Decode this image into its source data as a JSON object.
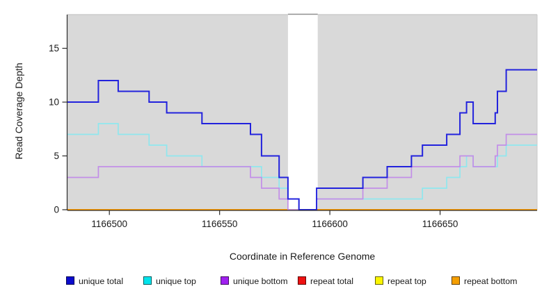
{
  "figure": {
    "panel_fill": "#d9d9d9",
    "panel_border_color": "#c6c6c6",
    "axis_color": "#2a2a2a",
    "text_color": "#1a1a1a"
  },
  "chart_data": {
    "type": "line",
    "step": true,
    "title": "",
    "xlabel": "Coordinate in Reference Genome",
    "ylabel": "Read Coverage Depth",
    "xlim": [
      1166481,
      1166694
    ],
    "ylim": [
      0,
      18.1
    ],
    "x_ticks": [
      1166500,
      1166550,
      1166600,
      1166650
    ],
    "y_ticks": [
      0,
      5,
      10,
      15
    ],
    "grid": false,
    "legend_position": "bottom",
    "gap_band": {
      "start": 1166581,
      "end": 1166594.5,
      "fill": "#ffffff",
      "top_line_color": "#8f8f8f"
    },
    "series": [
      {
        "name": "repeat total",
        "color_line": "#dd0000",
        "color_legend": "#ee1111",
        "width": 1.7,
        "segments": [
          [
            1166481,
            0
          ]
        ]
      },
      {
        "name": "repeat top",
        "color_line": "#f0f000",
        "color_legend": "#fbf500",
        "width": 1.7,
        "segments": [
          [
            1166481,
            0
          ]
        ]
      },
      {
        "name": "repeat bottom",
        "color_line": "#ff9c00",
        "color_legend": "#f59f00",
        "width": 2,
        "segments": [
          [
            1166481,
            0
          ]
        ]
      },
      {
        "name": "unique top",
        "color_line": "#8fe7ee",
        "color_legend": "#00e4ec",
        "width": 1.7,
        "segments": [
          [
            1166481,
            7
          ],
          [
            1166495,
            8
          ],
          [
            1166504,
            7
          ],
          [
            1166518,
            6
          ],
          [
            1166526,
            5
          ],
          [
            1166542,
            4
          ],
          [
            1166569,
            3
          ],
          [
            1166577,
            2
          ],
          [
            1166581,
            1
          ],
          [
            1166586,
            0
          ],
          [
            1166594,
            1
          ],
          [
            1166642,
            2
          ],
          [
            1166653,
            3
          ],
          [
            1166659,
            4
          ],
          [
            1166662,
            5
          ],
          [
            1166665,
            4
          ],
          [
            1166676,
            5
          ],
          [
            1166680,
            6
          ]
        ]
      },
      {
        "name": "unique bottom",
        "color_line": "#c28ee8",
        "color_legend": "#a020f0",
        "width": 1.7,
        "segments": [
          [
            1166481,
            3
          ],
          [
            1166495,
            4
          ],
          [
            1166564,
            3
          ],
          [
            1166569,
            2
          ],
          [
            1166577,
            1
          ],
          [
            1166581,
            0
          ],
          [
            1166594,
            1
          ],
          [
            1166615,
            2
          ],
          [
            1166626,
            3
          ],
          [
            1166637,
            4
          ],
          [
            1166659,
            5
          ],
          [
            1166665,
            4
          ],
          [
            1166675,
            5
          ],
          [
            1166676,
            6
          ],
          [
            1166680,
            7
          ]
        ]
      },
      {
        "name": "unique total",
        "color_line": "#2222dd",
        "color_legend": "#0b0bcd",
        "width": 2,
        "segments": [
          [
            1166481,
            10
          ],
          [
            1166495,
            12
          ],
          [
            1166504,
            11
          ],
          [
            1166518,
            10
          ],
          [
            1166526,
            9
          ],
          [
            1166542,
            8
          ],
          [
            1166564,
            7
          ],
          [
            1166569,
            5
          ],
          [
            1166577,
            3
          ],
          [
            1166581,
            1
          ],
          [
            1166586,
            0
          ],
          [
            1166594,
            2
          ],
          [
            1166615,
            3
          ],
          [
            1166626,
            4
          ],
          [
            1166637,
            5
          ],
          [
            1166642,
            6
          ],
          [
            1166653,
            7
          ],
          [
            1166659,
            9
          ],
          [
            1166662,
            10
          ],
          [
            1166665,
            8
          ],
          [
            1166675,
            9
          ],
          [
            1166676,
            11
          ],
          [
            1166680,
            13
          ]
        ]
      }
    ],
    "legend_order": [
      "unique total",
      "unique top",
      "unique bottom",
      "repeat total",
      "repeat top",
      "repeat bottom"
    ]
  }
}
